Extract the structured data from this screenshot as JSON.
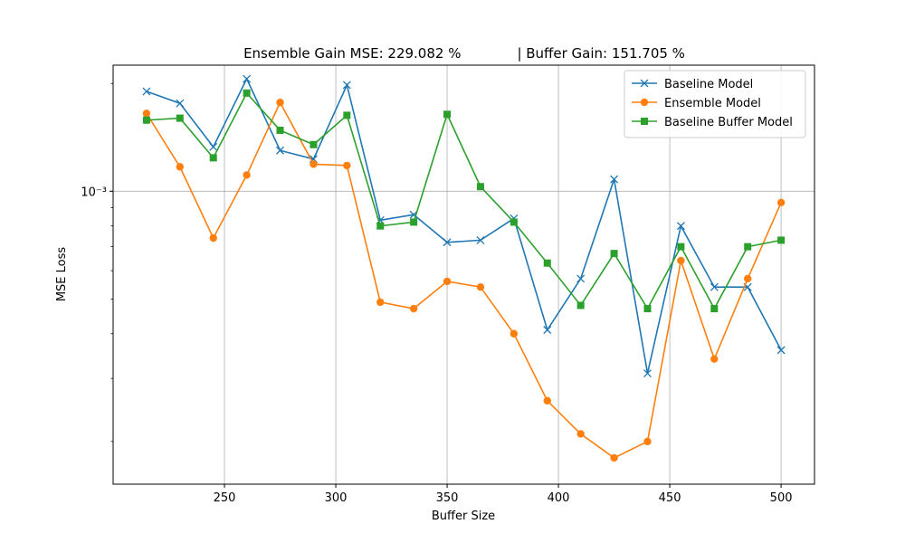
{
  "chart_data": {
    "type": "line",
    "title": "Ensemble Gain MSE: 229.082 %             | Buffer Gain: 151.705 %",
    "xlabel": "Buffer Size",
    "ylabel": "MSE Loss",
    "xlim": [
      200,
      515
    ],
    "ylim": [
      0.000152,
      0.00225
    ],
    "y_scale": "log",
    "grid": true,
    "legend_position": "upper-right",
    "x_ticks": [
      250,
      300,
      350,
      400,
      450,
      500
    ],
    "x_tick_labels": [
      "250",
      "300",
      "350",
      "400",
      "450",
      "500"
    ],
    "y_ticks": [
      0.001
    ],
    "y_tick_labels": [
      "10⁻³"
    ],
    "x": [
      215,
      230,
      245,
      260,
      275,
      290,
      305,
      320,
      335,
      350,
      365,
      380,
      395,
      410,
      425,
      440,
      455,
      470,
      485,
      500
    ],
    "series": [
      {
        "name": "Baseline Model",
        "color": "#1f77b4",
        "marker": "x",
        "values": [
          0.0019,
          0.00176,
          0.00133,
          0.00206,
          0.0013,
          0.00123,
          0.00198,
          0.00083,
          0.00086,
          0.00072,
          0.00073,
          0.00084,
          0.00041,
          0.00057,
          0.00108,
          0.00031,
          0.0008,
          0.00054,
          0.00054,
          0.00036
        ]
      },
      {
        "name": "Ensemble Model",
        "color": "#ff7f0e",
        "marker": "o",
        "values": [
          0.00165,
          0.00117,
          0.00074,
          0.00111,
          0.00177,
          0.00119,
          0.00118,
          0.00049,
          0.00047,
          0.00056,
          0.00054,
          0.0004,
          0.00026,
          0.00021,
          0.00018,
          0.0002,
          0.00064,
          0.00034,
          0.00057,
          0.00093
        ]
      },
      {
        "name": "Baseline Buffer Model",
        "color": "#2ca02c",
        "marker": "s",
        "values": [
          0.00158,
          0.0016,
          0.00124,
          0.00188,
          0.00148,
          0.00135,
          0.00163,
          0.0008,
          0.00082,
          0.00164,
          0.00103,
          0.00082,
          0.00063,
          0.00048,
          0.00067,
          0.00047,
          0.0007,
          0.00047,
          0.0007,
          0.00073
        ]
      }
    ]
  }
}
